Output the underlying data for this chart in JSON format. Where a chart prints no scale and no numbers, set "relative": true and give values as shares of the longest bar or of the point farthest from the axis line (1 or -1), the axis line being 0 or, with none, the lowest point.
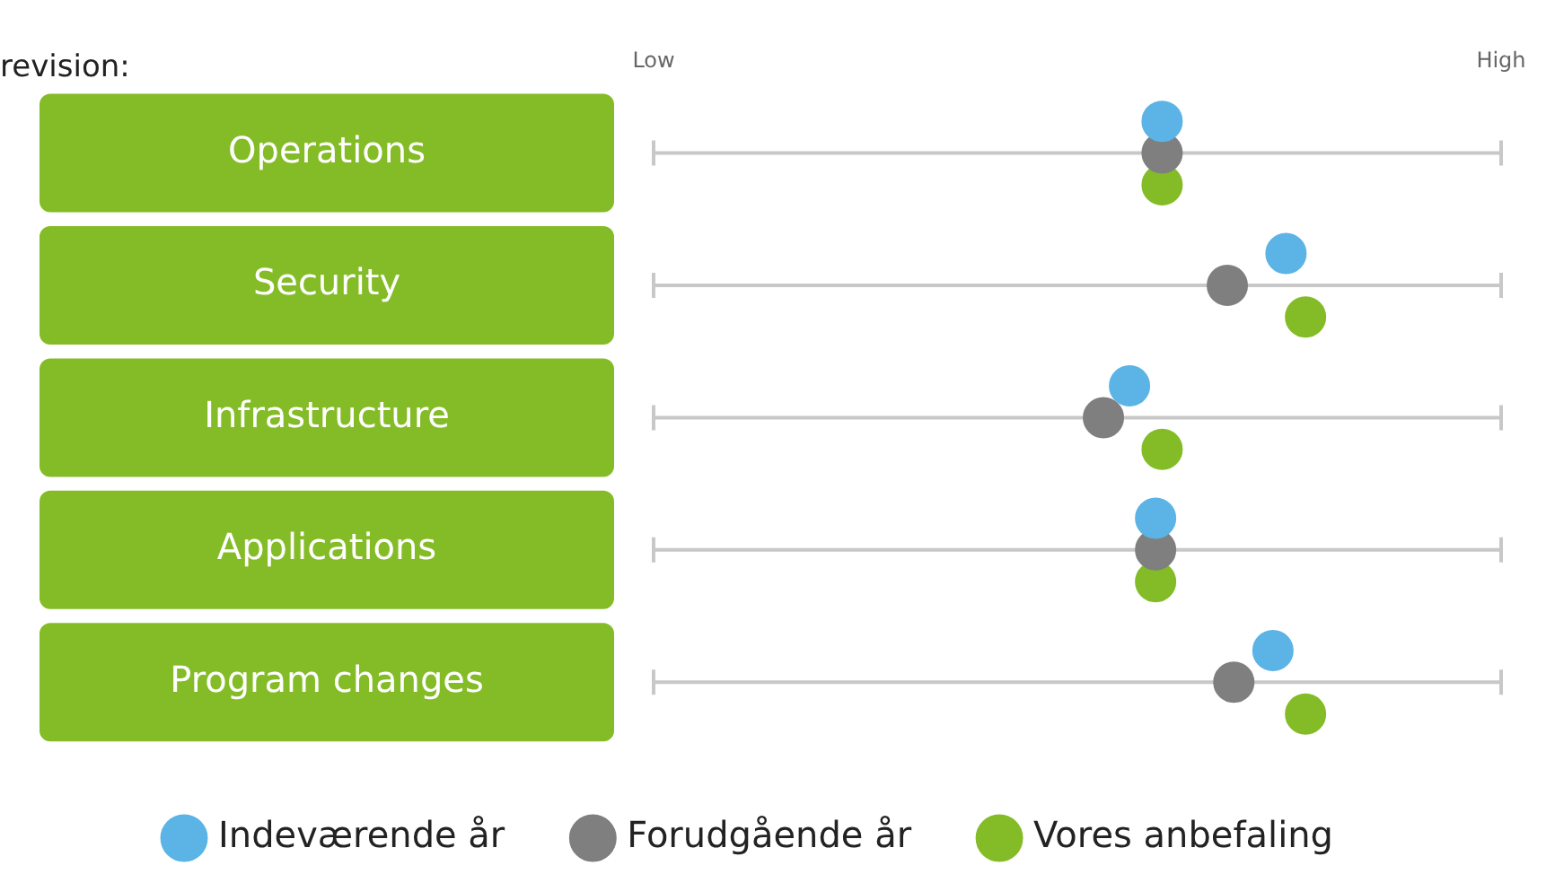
{
  "chart_data": {
    "type": "scatter",
    "orientation": "horizontal",
    "title": "revision:",
    "categories": [
      "Operations",
      "Security",
      "Infrastructure",
      "Applications",
      "Program changes"
    ],
    "series": [
      {
        "name": "Indeværende år",
        "color": "#5bb4e5",
        "values": [
          0.78,
          0.97,
          0.73,
          0.77,
          0.95
        ]
      },
      {
        "name": "Forudgående år",
        "color": "#7f7f7f",
        "values": [
          0.78,
          0.88,
          0.69,
          0.77,
          0.89
        ]
      },
      {
        "name": "Vores anbefaling",
        "color": "#84bc27",
        "values": [
          0.78,
          1,
          0.78,
          0.77,
          1
        ]
      }
    ],
    "relative": true,
    "annotations": [
      "Low",
      "High"
    ],
    "grid": "y",
    "legend": "bottom",
    "marker": "circle"
  }
}
